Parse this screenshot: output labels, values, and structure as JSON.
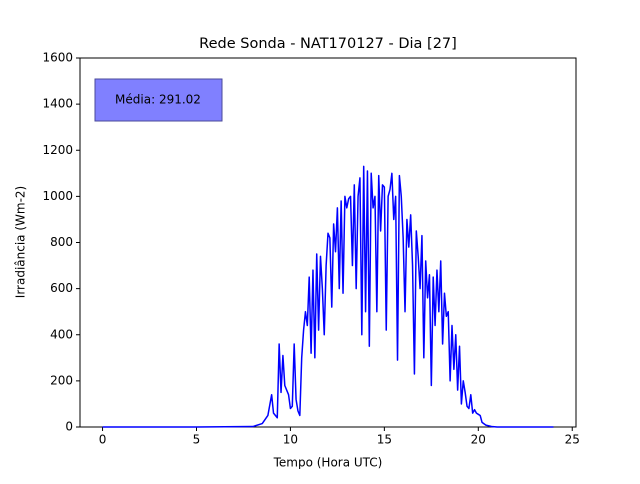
{
  "chart_data": {
    "type": "line",
    "title": "Rede Sonda - NAT170127 - Dia [27]",
    "xlabel": "Tempo (Hora UTC)",
    "ylabel": "Irradiância (Wm-2)",
    "annotation": "Média: 291.02",
    "xlim": [
      -1.2,
      25.2
    ],
    "ylim": [
      0,
      1600
    ],
    "xticks": [
      0,
      5,
      10,
      15,
      20,
      25
    ],
    "yticks": [
      0,
      200,
      400,
      600,
      800,
      1000,
      1200,
      1400,
      1600
    ],
    "grid": false,
    "series": [
      {
        "color": "#0000ff",
        "x": [
          0,
          5,
          8,
          8.5,
          8.8,
          9.0,
          9.1,
          9.3,
          9.4,
          9.5,
          9.6,
          9.7,
          9.9,
          10.0,
          10.1,
          10.2,
          10.3,
          10.4,
          10.5,
          10.6,
          10.7,
          10.8,
          10.9,
          11.0,
          11.1,
          11.2,
          11.3,
          11.4,
          11.5,
          11.6,
          11.7,
          11.8,
          11.9,
          12.0,
          12.1,
          12.2,
          12.3,
          12.4,
          12.5,
          12.6,
          12.7,
          12.8,
          12.9,
          13.0,
          13.1,
          13.2,
          13.3,
          13.4,
          13.5,
          13.6,
          13.7,
          13.8,
          13.9,
          14.0,
          14.1,
          14.2,
          14.3,
          14.4,
          14.5,
          14.6,
          14.7,
          14.8,
          14.9,
          15.0,
          15.1,
          15.2,
          15.3,
          15.4,
          15.5,
          15.6,
          15.7,
          15.8,
          15.9,
          16.0,
          16.1,
          16.2,
          16.3,
          16.4,
          16.5,
          16.6,
          16.7,
          16.8,
          16.9,
          17.0,
          17.1,
          17.2,
          17.3,
          17.4,
          17.5,
          17.6,
          17.7,
          17.8,
          17.9,
          18.0,
          18.1,
          18.2,
          18.3,
          18.4,
          18.5,
          18.6,
          18.7,
          18.8,
          18.9,
          19.0,
          19.1,
          19.2,
          19.3,
          19.4,
          19.5,
          19.6,
          19.7,
          19.8,
          19.9,
          20.0,
          20.1,
          20.2,
          20.4,
          20.7,
          21,
          24
        ],
        "values": [
          0,
          0,
          2,
          15,
          50,
          140,
          60,
          40,
          360,
          150,
          310,
          180,
          140,
          80,
          90,
          360,
          120,
          70,
          50,
          300,
          420,
          500,
          440,
          650,
          320,
          680,
          300,
          750,
          420,
          740,
          600,
          400,
          700,
          840,
          820,
          520,
          880,
          760,
          950,
          600,
          980,
          580,
          1000,
          950,
          990,
          1000,
          700,
          1050,
          600,
          1000,
          1080,
          400,
          1130,
          500,
          1110,
          350,
          1100,
          950,
          1000,
          500,
          1090,
          850,
          1050,
          1040,
          420,
          1000,
          1030,
          1100,
          900,
          1000,
          290,
          1090,
          1000,
          820,
          500,
          900,
          780,
          920,
          700,
          230,
          850,
          740,
          600,
          830,
          300,
          720,
          560,
          660,
          180,
          650,
          440,
          680,
          500,
          720,
          360,
          580,
          480,
          500,
          200,
          440,
          250,
          400,
          160,
          350,
          100,
          200,
          150,
          90,
          80,
          140,
          60,
          75,
          60,
          55,
          50,
          20,
          8,
          2,
          0,
          0
        ]
      }
    ]
  }
}
